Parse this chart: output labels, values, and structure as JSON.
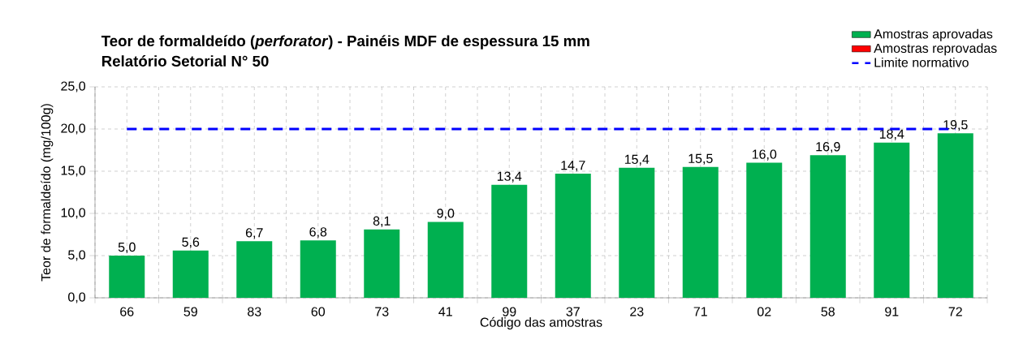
{
  "chart_data": {
    "type": "bar",
    "title": "Teor de formaldeído (*perforator*) - Painéis MDF de espessura 15 mm",
    "subtitle": "Relatório Setorial N° 50",
    "xlabel": "Código das amostras",
    "ylabel": "Teor de formaldeído (mg/100g)",
    "categories": [
      "66",
      "59",
      "83",
      "60",
      "73",
      "41",
      "99",
      "37",
      "23",
      "71",
      "02",
      "58",
      "91",
      "72"
    ],
    "series": [
      {
        "name": "Amostras aprovadas",
        "color": "#00b050",
        "values": [
          5.0,
          5.6,
          6.7,
          6.8,
          8.1,
          9.0,
          13.4,
          14.7,
          15.4,
          15.5,
          16.0,
          16.9,
          18.4,
          19.5
        ],
        "value_labels": [
          "5,0",
          "5,6",
          "6,7",
          "6,8",
          "8,1",
          "9,0",
          "13,4",
          "14,7",
          "15,4",
          "15,5",
          "16,0",
          "16,9",
          "18,4",
          "19,5"
        ]
      },
      {
        "name": "Amostras reprovadas",
        "color": "#ff0000",
        "values": [
          null,
          null,
          null,
          null,
          null,
          null,
          null,
          null,
          null,
          null,
          null,
          null,
          null,
          null
        ]
      }
    ],
    "ylim": [
      0,
      25
    ],
    "yticks": [
      {
        "value": 0,
        "label": "0,0"
      },
      {
        "value": 5,
        "label": "5,0"
      },
      {
        "value": 10,
        "label": "10,0"
      },
      {
        "value": 15,
        "label": "15,0"
      },
      {
        "value": 20,
        "label": "20,0"
      },
      {
        "value": 25,
        "label": "25,0"
      }
    ],
    "ref_lines": [
      {
        "axis": "y",
        "value": 20,
        "label": "Limite normativo",
        "color": "#0000ff",
        "line_style": "dashed"
      }
    ],
    "grid": true,
    "legend": "top right"
  }
}
